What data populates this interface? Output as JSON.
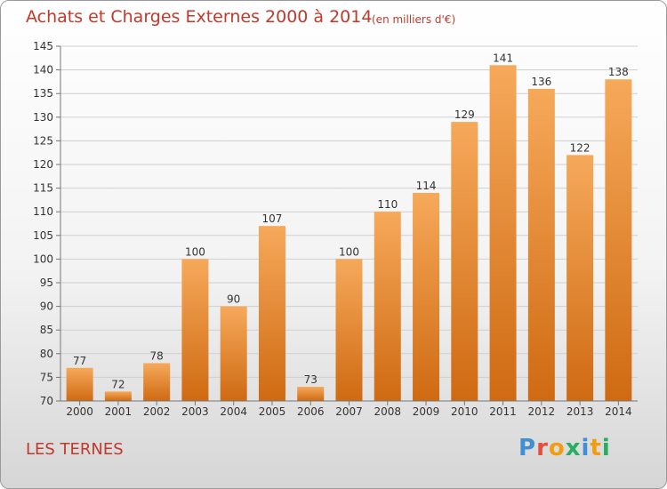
{
  "header": {
    "title": "Achats et Charges Externes 2000 à 2014",
    "subtitle": "(en milliers d'€)"
  },
  "footer": {
    "commune": "LES TERNES",
    "logo": "Proxiti"
  },
  "colors": {
    "title": "#c0392b",
    "bar_top": "#f6a95a",
    "bar_bottom": "#cf6a12",
    "logo_letters": [
      "#3f8fd2",
      "#e84c3d",
      "#f39c12",
      "#27ae60",
      "#3f8fd2",
      "#f39c12",
      "#27ae60"
    ]
  },
  "chart_data": {
    "type": "bar",
    "title": "Achats et Charges Externes 2000 à 2014",
    "subtitle": "(en milliers d'€)",
    "categories": [
      "2000",
      "2001",
      "2002",
      "2003",
      "2004",
      "2005",
      "2006",
      "2007",
      "2008",
      "2009",
      "2010",
      "2011",
      "2012",
      "2013",
      "2014"
    ],
    "values": [
      77,
      72,
      78,
      100,
      90,
      107,
      73,
      100,
      110,
      114,
      129,
      141,
      136,
      122,
      138
    ],
    "ylim": [
      70,
      145
    ],
    "yticks": [
      70,
      75,
      80,
      85,
      90,
      95,
      100,
      105,
      110,
      115,
      120,
      125,
      130,
      135,
      140,
      145
    ],
    "xlabel": "",
    "ylabel": "",
    "grid": true
  }
}
